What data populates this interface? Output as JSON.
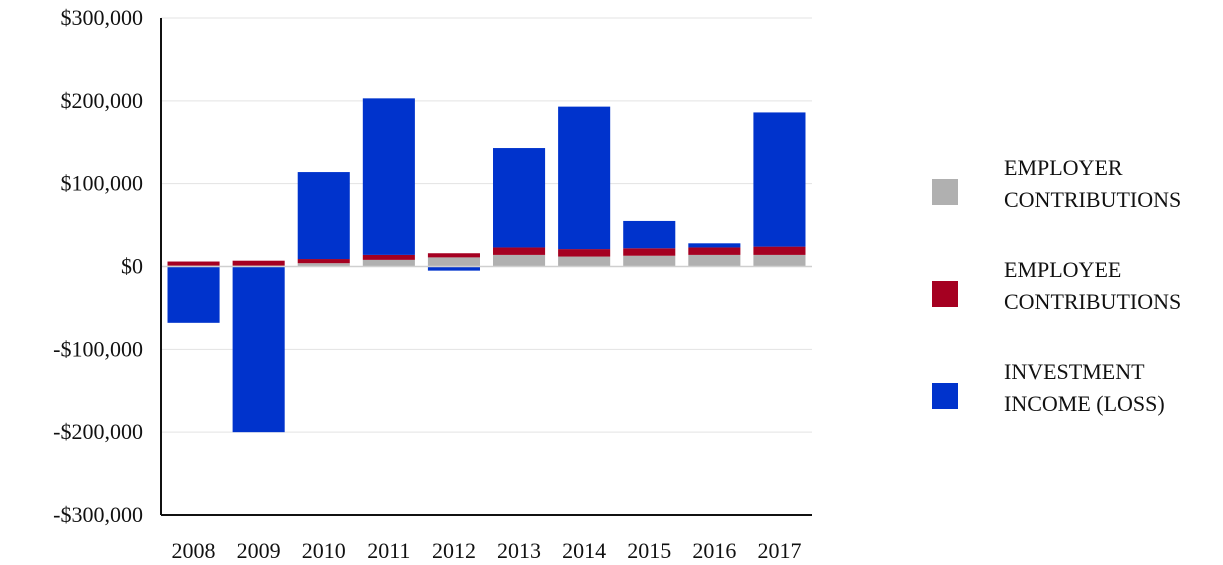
{
  "chart_data": {
    "type": "bar",
    "stacked": true,
    "title": "",
    "xlabel": "",
    "ylabel": "",
    "categories": [
      "2008",
      "2009",
      "2010",
      "2011",
      "2012",
      "2013",
      "2014",
      "2015",
      "2016",
      "2017"
    ],
    "ylim": [
      -300000,
      300000
    ],
    "yticks": [
      300000,
      200000,
      100000,
      0,
      -100000,
      -200000,
      -300000
    ],
    "ytick_labels": [
      "$300,000",
      "$200,000",
      "$100,000",
      "$0",
      "-$100,000",
      "-$200,000",
      "-$300,000"
    ],
    "grid": true,
    "legend_position": "right",
    "series": [
      {
        "name": "EMPLOYER CONTRIBUTIONS",
        "color": "#b0b0b0",
        "values": [
          1000,
          1000,
          4000,
          8000,
          11000,
          14000,
          12000,
          13000,
          14000,
          14000
        ]
      },
      {
        "name": "EMPLOYEE CONTRIBUTIONS",
        "color": "#a50021",
        "values": [
          5000,
          6000,
          5000,
          6000,
          5000,
          9000,
          9000,
          9000,
          9000,
          10000
        ]
      },
      {
        "name": "INVESTMENT INCOME (LOSS)",
        "color": "#0033cc",
        "values": [
          -68000,
          -200000,
          105000,
          189000,
          -5000,
          120000,
          172000,
          33000,
          5000,
          162000
        ]
      }
    ],
    "legend": [
      {
        "line1": "EMPLOYER",
        "line2": "CONTRIBUTIONS",
        "color": "#b0b0b0"
      },
      {
        "line1": "EMPLOYEE",
        "line2": "CONTRIBUTIONS",
        "color": "#a50021"
      },
      {
        "line1": "INVESTMENT",
        "line2": "INCOME (LOSS)",
        "color": "#0033cc"
      }
    ]
  }
}
